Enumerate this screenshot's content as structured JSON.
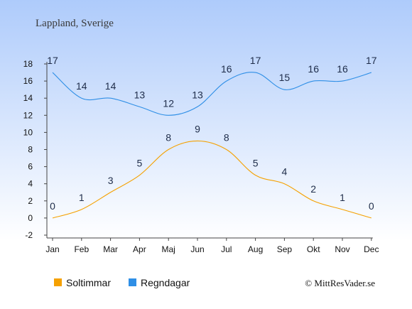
{
  "chart_data": {
    "type": "line",
    "title": "Lappland, Sverige",
    "categories": [
      "Jan",
      "Feb",
      "Mar",
      "Apr",
      "Maj",
      "Jun",
      "Jul",
      "Aug",
      "Sep",
      "Okt",
      "Nov",
      "Dec"
    ],
    "ylim": [
      -2,
      18
    ],
    "yticks": [
      -2,
      0,
      2,
      4,
      6,
      8,
      10,
      12,
      14,
      16,
      18
    ],
    "grid": false,
    "legend_position": "bottom-left",
    "series": [
      {
        "name": "Soltimmar",
        "color": "#f5a100",
        "values": [
          0,
          1,
          3,
          5,
          8,
          9,
          8,
          5,
          4,
          2,
          1,
          0
        ]
      },
      {
        "name": "Regndagar",
        "color": "#2f8fe6",
        "values": [
          17,
          14,
          14,
          13,
          12,
          13,
          16,
          17,
          15,
          16,
          16,
          17
        ]
      }
    ],
    "copyright": "© MittResVader.se"
  },
  "colors": {
    "background_top": "#aecbfb",
    "background_bottom": "#ffffff"
  }
}
